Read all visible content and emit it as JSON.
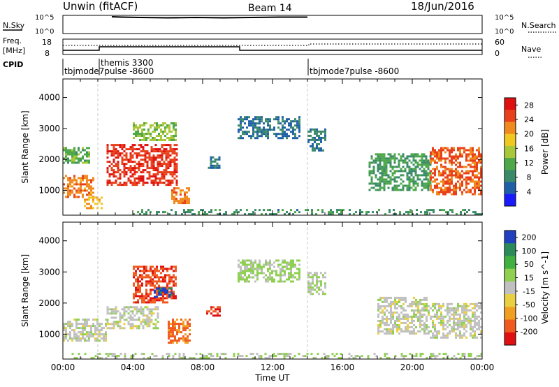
{
  "header": {
    "title": "Unwin (fitACF)",
    "beam": "Beam 14",
    "date": "18/Jun/2016"
  },
  "status_panels": {
    "nsky_label": "N.Sky",
    "nsky_ticks": [
      "10^5",
      "10^0"
    ],
    "nsearch_label": "N.Search",
    "freq_label_line1": "Freq.",
    "freq_label_line2": "[MHz]",
    "freq_ticks": [
      "18",
      "8"
    ],
    "nave_label": "Nave",
    "nave_ticks": [
      "60",
      "0"
    ],
    "cpid_label": "CPID",
    "cpid_segments": [
      {
        "start_hour": 0,
        "label": "tbjmode7pulse -8600"
      },
      {
        "start_hour": 2,
        "label": "themis 3300"
      },
      {
        "start_hour": 14,
        "label": "tbjmode7pulse -8600"
      }
    ]
  },
  "chart_data": [
    {
      "type": "heatmap",
      "title": "",
      "xlabel": "",
      "ylabel": "Slant Range [km]",
      "xlim": [
        0,
        24
      ],
      "ylim": [
        200,
        4600
      ],
      "y_ticks": [
        "1000",
        "2000",
        "3000",
        "4000"
      ],
      "colorbar": {
        "label": "Power [dB]",
        "ticks": [
          "4",
          "8",
          "12",
          "16",
          "20",
          "24",
          "28"
        ],
        "range": [
          0,
          30
        ],
        "colors": [
          "#1a1aff",
          "#1f5fa8",
          "#3a8a6a",
          "#4ea84a",
          "#a8c83a",
          "#f0c820",
          "#f08a1e",
          "#e8401a",
          "#e01010"
        ]
      },
      "regions": [
        {
          "t0": 0.0,
          "t1": 1.8,
          "r0": 800,
          "r1": 1500,
          "value": 22
        },
        {
          "t0": 1.2,
          "t1": 2.2,
          "r0": 400,
          "r1": 800,
          "value": 20
        },
        {
          "t0": 0.0,
          "t1": 1.5,
          "r0": 1900,
          "r1": 2400,
          "value": 12
        },
        {
          "t0": 2.5,
          "t1": 6.5,
          "r0": 1200,
          "r1": 2500,
          "value": 26
        },
        {
          "t0": 4.0,
          "t1": 6.5,
          "r0": 2600,
          "r1": 3200,
          "value": 14
        },
        {
          "t0": 6.2,
          "t1": 7.2,
          "r0": 600,
          "r1": 1100,
          "value": 22
        },
        {
          "t0": 8.3,
          "t1": 9.0,
          "r0": 1700,
          "r1": 2100,
          "value": 6
        },
        {
          "t0": 10.0,
          "t1": 13.5,
          "r0": 2700,
          "r1": 3400,
          "value": 6
        },
        {
          "t0": 14.0,
          "t1": 15.0,
          "r0": 2300,
          "r1": 3000,
          "value": 7
        },
        {
          "t0": 17.5,
          "t1": 21.0,
          "r0": 1000,
          "r1": 2200,
          "value": 10
        },
        {
          "t0": 21.0,
          "t1": 24.0,
          "r0": 900,
          "r1": 2400,
          "value": 24
        },
        {
          "t0": 4.0,
          "t1": 24.0,
          "r0": 200,
          "r1": 400,
          "value": 9
        }
      ]
    },
    {
      "type": "heatmap",
      "title": "",
      "xlabel": "Time UT",
      "ylabel": "Slant Range [km]",
      "xlim": [
        0,
        24
      ],
      "ylim": [
        200,
        4600
      ],
      "x_ticks": [
        "00:00",
        "04:00",
        "08:00",
        "12:00",
        "16:00",
        "20:00",
        "00:00"
      ],
      "y_ticks": [
        "1000",
        "2000",
        "3000",
        "4000"
      ],
      "colorbar": {
        "label": "Velocity [m s^-1]",
        "ticks": [
          "200",
          "100",
          "50",
          "15",
          "-15",
          "-50",
          "-100",
          "-200"
        ],
        "range": [
          -250,
          250
        ],
        "colors": [
          "#e01010",
          "#f05a1e",
          "#f0a020",
          "#e8d040",
          "#c0c0c0",
          "#8fd050",
          "#40b040",
          "#2a8a5a",
          "#2040c0"
        ]
      },
      "regions": [
        {
          "t0": 0.0,
          "t1": 2.5,
          "r0": 800,
          "r1": 1500,
          "value": 0
        },
        {
          "t0": 2.5,
          "t1": 5.5,
          "r0": 1200,
          "r1": 1900,
          "value": 0
        },
        {
          "t0": 4.0,
          "t1": 6.5,
          "r0": 2000,
          "r1": 3200,
          "value": -180
        },
        {
          "t0": 5.2,
          "t1": 6.2,
          "r0": 2200,
          "r1": 2500,
          "value": 220
        },
        {
          "t0": 6.0,
          "t1": 7.3,
          "r0": 700,
          "r1": 1500,
          "value": -150
        },
        {
          "t0": 8.2,
          "t1": 9.0,
          "r0": 1600,
          "r1": 1900,
          "value": -200
        },
        {
          "t0": 10.0,
          "t1": 13.5,
          "r0": 2700,
          "r1": 3400,
          "value": 40
        },
        {
          "t0": 14.0,
          "t1": 15.0,
          "r0": 2300,
          "r1": 3000,
          "value": 20
        },
        {
          "t0": 18.0,
          "t1": 21.0,
          "r0": 1000,
          "r1": 2200,
          "value": 0
        },
        {
          "t0": 21.0,
          "t1": 24.0,
          "r0": 900,
          "r1": 2000,
          "value": 0
        },
        {
          "t0": 0.5,
          "t1": 24.0,
          "r0": 200,
          "r1": 400,
          "value": 30
        }
      ]
    }
  ]
}
